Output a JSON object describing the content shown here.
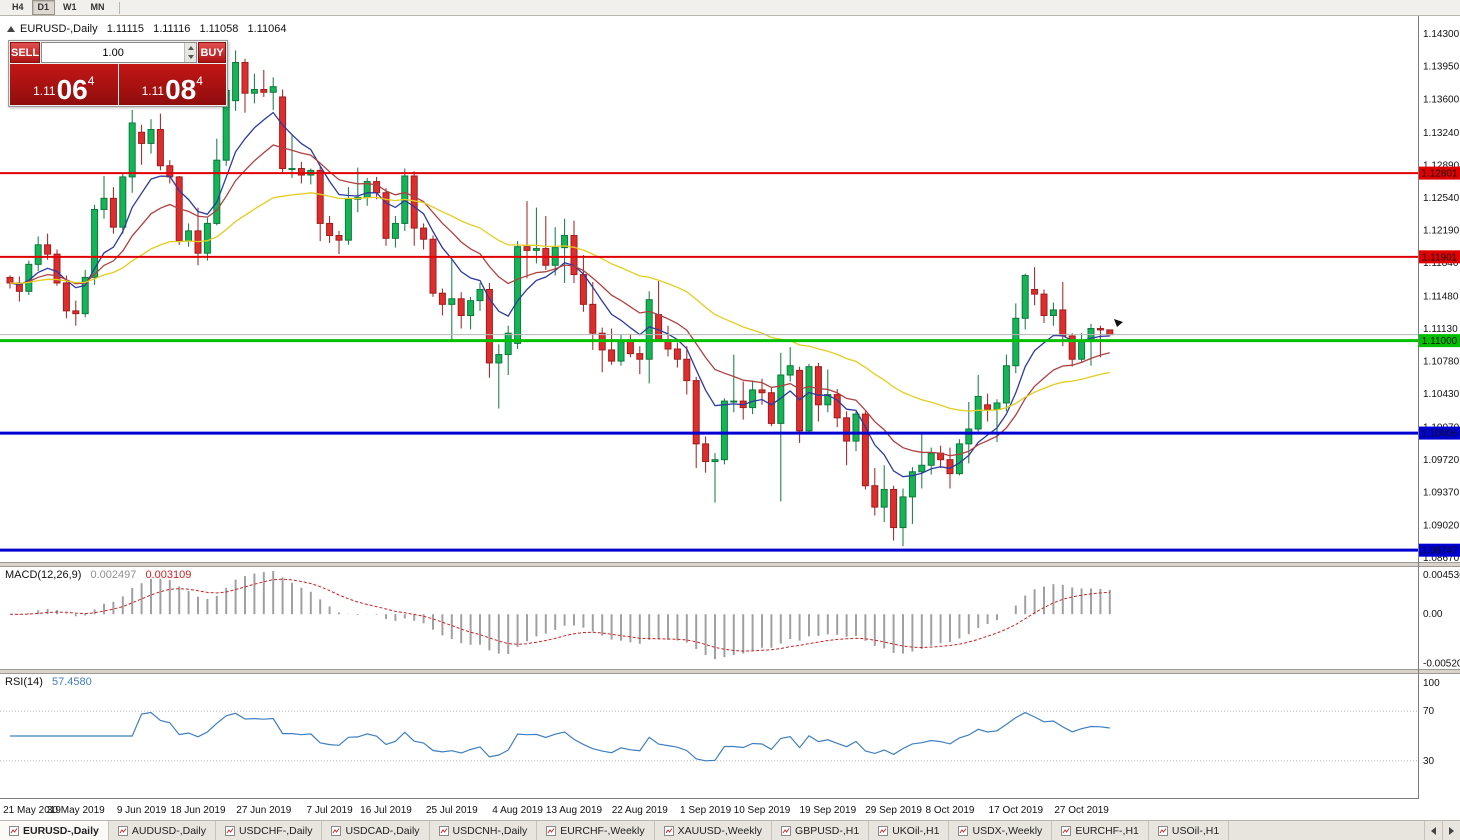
{
  "toolbar": {
    "periods": [
      "H4",
      "D1",
      "W1",
      "MN"
    ],
    "active_period": "D1"
  },
  "chart": {
    "header": {
      "symbol": "EURUSD-,Daily",
      "open": "1.11115",
      "high": "1.11116",
      "low": "1.11058",
      "close": "1.11064"
    },
    "trade_panel": {
      "sell_label": "SELL",
      "buy_label": "BUY",
      "volume": "1.00",
      "sell_price": {
        "small": "1.11",
        "big": "06",
        "sup": "4"
      },
      "buy_price": {
        "small": "1.11",
        "big": "08",
        "sup": "4"
      }
    }
  },
  "chart_data": {
    "type": "candlestick",
    "title": "EURUSD-,Daily",
    "price_range": [
      1.0862,
      1.1449
    ],
    "price_ticks": [
      "1.14300",
      "1.13950",
      "1.13600",
      "1.13240",
      "1.12890",
      "1.12540",
      "1.12190",
      "1.11840",
      "1.11480",
      "1.11130",
      "1.10780",
      "1.10430",
      "1.10070",
      "1.09720",
      "1.09370",
      "1.09020",
      "1.08670"
    ],
    "levels": [
      {
        "price": 1.12801,
        "label": "1.12801",
        "color": "#e00000",
        "width": 2
      },
      {
        "price": 1.11901,
        "label": "1.11901",
        "color": "#e00000",
        "width": 2
      },
      {
        "price": 1.11,
        "label": "1.11000",
        "color": "#00c000",
        "width": 3
      },
      {
        "price": 1.10006,
        "label": "1.10006",
        "color": "#0000d0",
        "width": 3
      },
      {
        "price": 1.08747,
        "label": "1.08747",
        "color": "#0000d0",
        "width": 3
      }
    ],
    "bid_line": {
      "price": 1.11064,
      "color": "#b4b4b4"
    },
    "colors": {
      "bull_fill": "#17b357",
      "bull_stroke": "#0b7a3c",
      "bear_fill": "#dc2e2e",
      "bear_stroke": "#a31c1c"
    },
    "moving_averages": [
      {
        "period": 8,
        "color": "#2b3aa0"
      },
      {
        "period": 16,
        "color": "#b04040"
      },
      {
        "period": 40,
        "color": "#e3cd1e"
      }
    ],
    "macd": {
      "label": "MACD(12,26,9)",
      "fast": 12,
      "slow": 26,
      "signal": 9,
      "values": [
        "0.002497",
        "0.003109"
      ],
      "axis_labels": [
        "0.004536",
        "0.00",
        "-0.005201"
      ],
      "range": [
        -0.0058,
        0.005
      ],
      "histogram_color": "#a0a0a0",
      "signal_color": "#cc2222"
    },
    "rsi": {
      "label": "RSI(14)",
      "period": 14,
      "value": "57.4580",
      "levels": [
        70,
        30
      ],
      "axis_labels": [
        "100",
        "70",
        "30"
      ],
      "color": "#3f7fc1"
    },
    "date_ticks": [
      {
        "label": "21 May 2019",
        "index": 0
      },
      {
        "label": "30 May 2019",
        "index": 7
      },
      {
        "label": "9 Jun 2019",
        "index": 14
      },
      {
        "label": "18 Jun 2019",
        "index": 20
      },
      {
        "label": "27 Jun 2019",
        "index": 27
      },
      {
        "label": "7 Jul 2019",
        "index": 34
      },
      {
        "label": "16 Jul 2019",
        "index": 40
      },
      {
        "label": "25 Jul 2019",
        "index": 47
      },
      {
        "label": "4 Aug 2019",
        "index": 54
      },
      {
        "label": "13 Aug 2019",
        "index": 60
      },
      {
        "label": "22 Aug 2019",
        "index": 67
      },
      {
        "label": "1 Sep 2019",
        "index": 74
      },
      {
        "label": "10 Sep 2019",
        "index": 80
      },
      {
        "label": "19 Sep 2019",
        "index": 87
      },
      {
        "label": "29 Sep 2019",
        "index": 94
      },
      {
        "label": "8 Oct 2019",
        "index": 100
      },
      {
        "label": "17 Oct 2019",
        "index": 107
      },
      {
        "label": "27 Oct 2019",
        "index": 114
      }
    ],
    "candles": [
      [
        1.1168,
        1.117,
        1.1156,
        1.1162
      ],
      [
        1.1162,
        1.1169,
        1.1142,
        1.1153
      ],
      [
        1.1153,
        1.1186,
        1.1149,
        1.1182
      ],
      [
        1.1182,
        1.1212,
        1.1175,
        1.1203
      ],
      [
        1.1203,
        1.1215,
        1.1187,
        1.1193
      ],
      [
        1.1193,
        1.1198,
        1.1159,
        1.1162
      ],
      [
        1.1162,
        1.117,
        1.1124,
        1.1132
      ],
      [
        1.1132,
        1.1143,
        1.1116,
        1.1129
      ],
      [
        1.1129,
        1.1176,
        1.1125,
        1.1168
      ],
      [
        1.1168,
        1.1246,
        1.116,
        1.1241
      ],
      [
        1.1241,
        1.1277,
        1.1231,
        1.1253
      ],
      [
        1.1253,
        1.1265,
        1.1215,
        1.1222
      ],
      [
        1.1222,
        1.128,
        1.1215,
        1.1276
      ],
      [
        1.1276,
        1.1348,
        1.1259,
        1.1334
      ],
      [
        1.1324,
        1.1332,
        1.1289,
        1.1312
      ],
      [
        1.1312,
        1.1338,
        1.1301,
        1.1327
      ],
      [
        1.1327,
        1.1344,
        1.1283,
        1.1288
      ],
      [
        1.1288,
        1.1294,
        1.1269,
        1.1276
      ],
      [
        1.1276,
        1.1277,
        1.1203,
        1.1207
      ],
      [
        1.1207,
        1.1226,
        1.1201,
        1.1218
      ],
      [
        1.1218,
        1.1243,
        1.1181,
        1.1194
      ],
      [
        1.1194,
        1.1232,
        1.1186,
        1.1226
      ],
      [
        1.1226,
        1.1317,
        1.1224,
        1.1294
      ],
      [
        1.1294,
        1.1378,
        1.1288,
        1.1369
      ],
      [
        1.1358,
        1.1412,
        1.1347,
        1.1399
      ],
      [
        1.1399,
        1.1403,
        1.1345,
        1.1366
      ],
      [
        1.1366,
        1.1387,
        1.1355,
        1.137
      ],
      [
        1.137,
        1.1391,
        1.1362,
        1.1367
      ],
      [
        1.1367,
        1.1383,
        1.1348,
        1.1373
      ],
      [
        1.1362,
        1.137,
        1.1281,
        1.1285
      ],
      [
        1.1285,
        1.1322,
        1.1275,
        1.1285
      ],
      [
        1.1285,
        1.1292,
        1.1269,
        1.1278
      ],
      [
        1.1278,
        1.1285,
        1.1268,
        1.1283
      ],
      [
        1.1283,
        1.1287,
        1.1207,
        1.1226
      ],
      [
        1.1226,
        1.1234,
        1.1205,
        1.1213
      ],
      [
        1.1213,
        1.1218,
        1.1193,
        1.1208
      ],
      [
        1.1208,
        1.1265,
        1.1203,
        1.1252
      ],
      [
        1.1252,
        1.1286,
        1.1238,
        1.1254
      ],
      [
        1.1254,
        1.1275,
        1.1245,
        1.1271
      ],
      [
        1.1271,
        1.1276,
        1.1252,
        1.1259
      ],
      [
        1.1259,
        1.1264,
        1.1202,
        1.121
      ],
      [
        1.121,
        1.1234,
        1.12,
        1.1226
      ],
      [
        1.1226,
        1.1285,
        1.1218,
        1.1277
      ],
      [
        1.1277,
        1.1282,
        1.1202,
        1.1221
      ],
      [
        1.1221,
        1.1226,
        1.1198,
        1.1209
      ],
      [
        1.1209,
        1.1213,
        1.1147,
        1.1151
      ],
      [
        1.1151,
        1.1156,
        1.1127,
        1.1139
      ],
      [
        1.1139,
        1.1188,
        1.1101,
        1.1145
      ],
      [
        1.1145,
        1.1152,
        1.1113,
        1.1127
      ],
      [
        1.1127,
        1.1147,
        1.1112,
        1.1143
      ],
      [
        1.1143,
        1.1162,
        1.1132,
        1.1155
      ],
      [
        1.1155,
        1.1162,
        1.106,
        1.1076
      ],
      [
        1.1076,
        1.1096,
        1.1027,
        1.1085
      ],
      [
        1.1085,
        1.1116,
        1.1063,
        1.1108
      ],
      [
        1.1097,
        1.1207,
        1.1091,
        1.1201
      ],
      [
        1.1201,
        1.125,
        1.1167,
        1.1197
      ],
      [
        1.1197,
        1.1243,
        1.1183,
        1.1199
      ],
      [
        1.1199,
        1.1234,
        1.1176,
        1.1181
      ],
      [
        1.1181,
        1.1222,
        1.117,
        1.12
      ],
      [
        1.12,
        1.1231,
        1.1162,
        1.1213
      ],
      [
        1.1213,
        1.1229,
        1.1162,
        1.1171
      ],
      [
        1.1171,
        1.1192,
        1.1131,
        1.1139
      ],
      [
        1.1139,
        1.1163,
        1.109,
        1.1108
      ],
      [
        1.1108,
        1.1114,
        1.1066,
        1.109
      ],
      [
        1.109,
        1.1113,
        1.1074,
        1.1078
      ],
      [
        1.1078,
        1.1107,
        1.1073,
        1.11
      ],
      [
        1.11,
        1.1107,
        1.1082,
        1.1086
      ],
      [
        1.1086,
        1.1094,
        1.1064,
        1.108
      ],
      [
        1.108,
        1.1153,
        1.1054,
        1.1144
      ],
      [
        1.1128,
        1.1164,
        1.1099,
        1.1101
      ],
      [
        1.1101,
        1.1116,
        1.1083,
        1.1091
      ],
      [
        1.1091,
        1.1098,
        1.1071,
        1.108
      ],
      [
        1.108,
        1.1094,
        1.1042,
        1.1057
      ],
      [
        1.1057,
        1.1061,
        1.0963,
        1.0989
      ],
      [
        1.0989,
        1.0997,
        1.0958,
        1.097
      ],
      [
        1.097,
        1.0979,
        1.0926,
        1.0972
      ],
      [
        1.0972,
        1.1038,
        1.0967,
        1.1035
      ],
      [
        1.1035,
        1.1085,
        1.1023,
        1.1035
      ],
      [
        1.1035,
        1.1056,
        1.1015,
        1.1028
      ],
      [
        1.1028,
        1.1057,
        1.1021,
        1.1047
      ],
      [
        1.1047,
        1.1059,
        1.1031,
        1.1044
      ],
      [
        1.1044,
        1.1049,
        1.1008,
        1.1011
      ],
      [
        1.1011,
        1.1087,
        1.0927,
        1.1063
      ],
      [
        1.1063,
        1.1093,
        1.1056,
        1.1073
      ],
      [
        1.1068,
        1.1072,
        1.099,
        1.1003
      ],
      [
        1.1003,
        1.1075,
        1.1,
        1.1072
      ],
      [
        1.1072,
        1.1076,
        1.1013,
        1.1031
      ],
      [
        1.1031,
        1.1069,
        1.1023,
        1.1042
      ],
      [
        1.1042,
        1.1048,
        1.1007,
        1.1017
      ],
      [
        1.1017,
        1.1024,
        1.0966,
        1.0992
      ],
      [
        1.0992,
        1.1024,
        1.0981,
        1.1021
      ],
      [
        1.1021,
        1.1024,
        1.094,
        1.0944
      ],
      [
        1.0944,
        1.0963,
        1.0912,
        1.0921
      ],
      [
        1.0921,
        1.0966,
        1.0905,
        1.094
      ],
      [
        1.094,
        1.0944,
        1.0885,
        1.0899
      ],
      [
        1.0899,
        1.0941,
        1.0879,
        1.0932
      ],
      [
        1.0932,
        1.0964,
        1.0903,
        1.0959
      ],
      [
        1.0959,
        1.0999,
        1.0941,
        1.0966
      ],
      [
        1.0966,
        1.0985,
        1.0956,
        1.0979
      ],
      [
        1.0979,
        1.0987,
        1.0963,
        1.0972
      ],
      [
        1.0972,
        1.0985,
        1.0941,
        1.0957
      ],
      [
        1.0957,
        1.0994,
        1.0955,
        1.0989
      ],
      [
        1.0989,
        1.1034,
        1.0968,
        1.1005
      ],
      [
        1.1005,
        1.1063,
        1.1002,
        1.104
      ],
      [
        1.1031,
        1.1043,
        1.1013,
        1.1026
      ],
      [
        1.1026,
        1.1037,
        1.0991,
        1.1033
      ],
      [
        1.1033,
        1.1085,
        1.1024,
        1.1073
      ],
      [
        1.1073,
        1.114,
        1.1065,
        1.1124
      ],
      [
        1.1124,
        1.1172,
        1.1112,
        1.117
      ],
      [
        1.1155,
        1.1179,
        1.1138,
        1.115
      ],
      [
        1.115,
        1.1155,
        1.1119,
        1.1127
      ],
      [
        1.1127,
        1.1141,
        1.1116,
        1.1133
      ],
      [
        1.1133,
        1.1163,
        1.1094,
        1.1105
      ],
      [
        1.1105,
        1.1108,
        1.1072,
        1.108
      ],
      [
        1.108,
        1.1108,
        1.1076,
        1.1099
      ],
      [
        1.1099,
        1.1118,
        1.1073,
        1.1113
      ],
      [
        1.1113,
        1.1116,
        1.1082,
        1.11115
      ],
      [
        1.11115,
        1.11116,
        1.11058,
        1.11064
      ]
    ]
  },
  "tabs": {
    "items": [
      "EURUSD-,Daily",
      "AUDUSD-,Daily",
      "USDCHF-,Daily",
      "USDCAD-,Daily",
      "USDCNH-,Daily",
      "EURCHF-,Weekly",
      "XAUUSD-,Weekly",
      "GBPUSD-,H1",
      "UKOil-,H1",
      "USDX-,Weekly",
      "EURCHF-,H1",
      "USOil-,H1"
    ],
    "active": "EURUSD-,Daily"
  }
}
